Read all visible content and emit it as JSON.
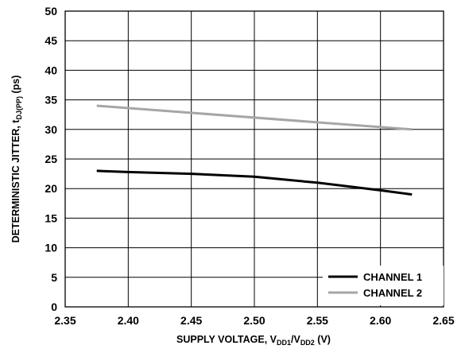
{
  "chart_data": {
    "type": "line",
    "xlabel": {
      "main": "SUPPLY VOLTAGE, V",
      "sub1": "DD1",
      "mid": "/V",
      "sub2": "DD2",
      "unit": " (V)"
    },
    "ylabel": {
      "main": "DETERMINISTIC JITTER, t",
      "sub": "DJ(PP)",
      "unit": " (ps)"
    },
    "xlim": [
      2.35,
      2.65
    ],
    "ylim": [
      0,
      50
    ],
    "xticks": [
      "2.35",
      "2.40",
      "2.45",
      "2.50",
      "2.55",
      "2.60",
      "2.65"
    ],
    "yticks": [
      "0",
      "5",
      "10",
      "15",
      "20",
      "25",
      "30",
      "35",
      "40",
      "45",
      "50"
    ],
    "grid": true,
    "legend_position": "bottom-right",
    "series": [
      {
        "name": "CHANNEL 1",
        "color": "#000000",
        "x": [
          2.375,
          2.4,
          2.45,
          2.5,
          2.55,
          2.6,
          2.625
        ],
        "y": [
          23.0,
          22.8,
          22.5,
          22.0,
          21.0,
          19.7,
          19.0
        ]
      },
      {
        "name": "CHANNEL 2",
        "color": "#a6a6a6",
        "x": [
          2.375,
          2.625
        ],
        "y": [
          34.0,
          30.0
        ]
      }
    ]
  }
}
